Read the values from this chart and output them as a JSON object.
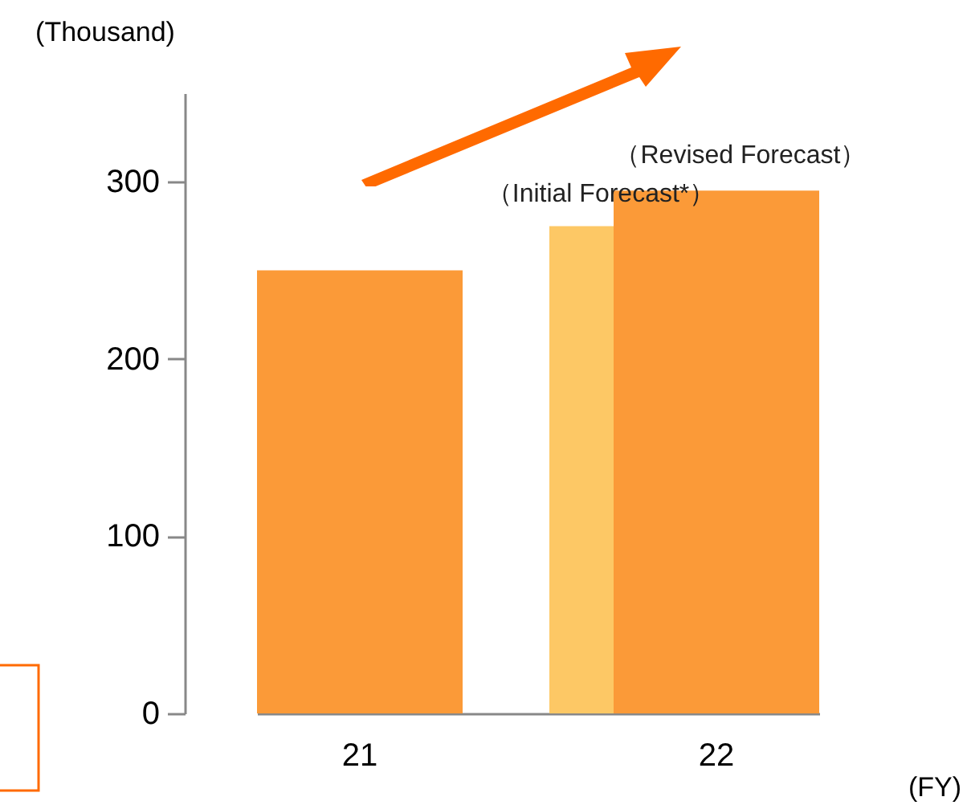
{
  "chart_data": {
    "type": "bar",
    "ylabel": "(Thousand)",
    "xlabel": "(FY)",
    "categories": [
      "21",
      "22"
    ],
    "series": [
      {
        "color": "#fdc865",
        "values": [
          null,
          275
        ]
      },
      {
        "color": "#fb9a38",
        "values": [
          250,
          295
        ]
      }
    ],
    "ylim": [
      0,
      350
    ],
    "yticks": [
      0,
      100,
      200,
      300
    ],
    "annotations": [
      {
        "text": "（Revised Forecast）",
        "x": "22",
        "y": 295
      },
      {
        "text": "（Initial Forecast*）",
        "x": "22",
        "y": 275
      }
    ]
  }
}
